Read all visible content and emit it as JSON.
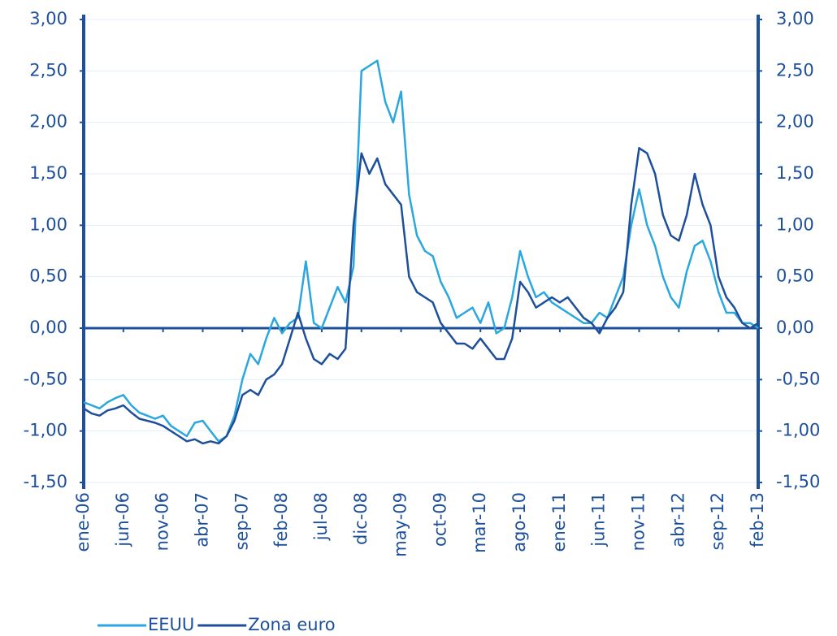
{
  "chart_data": {
    "type": "line",
    "categories": [
      "ene-06",
      null,
      null,
      null,
      null,
      "jun-06",
      null,
      null,
      null,
      null,
      "nov-06",
      null,
      null,
      null,
      null,
      "abr-07",
      null,
      null,
      null,
      null,
      "sep-07",
      null,
      null,
      null,
      null,
      "feb-08",
      null,
      null,
      null,
      null,
      "jul-08",
      null,
      null,
      null,
      null,
      "dic-08",
      null,
      null,
      null,
      null,
      "may-09",
      null,
      null,
      null,
      null,
      "oct-09",
      null,
      null,
      null,
      null,
      "mar-10",
      null,
      null,
      null,
      null,
      "ago-10",
      null,
      null,
      null,
      null,
      "ene-11",
      null,
      null,
      null,
      null,
      "jun-11",
      null,
      null,
      null,
      null,
      "nov-11",
      null,
      null,
      null,
      null,
      "abr-12",
      null,
      null,
      null,
      null,
      "sep-12",
      null,
      null,
      null,
      null,
      "feb-13"
    ],
    "series": [
      {
        "name": "EEUU",
        "color": "#2aa7df",
        "values": [
          -0.72,
          -0.75,
          -0.78,
          -0.72,
          -0.68,
          -0.65,
          -0.75,
          -0.82,
          -0.85,
          -0.88,
          -0.85,
          -0.95,
          -1.0,
          -1.05,
          -0.92,
          -0.9,
          -1.0,
          -1.1,
          -1.05,
          -0.85,
          -0.5,
          -0.25,
          -0.35,
          -0.1,
          0.1,
          -0.05,
          0.05,
          0.1,
          0.65,
          0.05,
          0.0,
          0.2,
          0.4,
          0.25,
          0.6,
          2.5,
          2.55,
          2.6,
          2.2,
          2.0,
          2.3,
          1.3,
          0.9,
          0.75,
          0.7,
          0.45,
          0.3,
          0.1,
          0.15,
          0.2,
          0.05,
          0.25,
          -0.05,
          0.0,
          0.3,
          0.75,
          0.5,
          0.3,
          0.35,
          0.25,
          0.2,
          0.15,
          0.1,
          0.05,
          0.05,
          0.15,
          0.1,
          0.3,
          0.5,
          1.0,
          1.35,
          1.0,
          0.8,
          0.5,
          0.3,
          0.2,
          0.55,
          0.8,
          0.85,
          0.65,
          0.35,
          0.15,
          0.15,
          0.05,
          0.05,
          0.0
        ]
      },
      {
        "name": "Zona euro",
        "color": "#1d4f9b",
        "axis": "y2",
        "values": [
          -0.78,
          -0.83,
          -0.85,
          -0.8,
          -0.78,
          -0.75,
          -0.82,
          -0.88,
          -0.9,
          -0.92,
          -0.95,
          -1.0,
          -1.05,
          -1.1,
          -1.08,
          -1.12,
          -1.1,
          -1.12,
          -1.05,
          -0.9,
          -0.65,
          -0.6,
          -0.65,
          -0.5,
          -0.45,
          -0.35,
          -0.1,
          0.15,
          -0.1,
          -0.3,
          -0.35,
          -0.25,
          -0.3,
          -0.2,
          1.0,
          1.7,
          1.5,
          1.65,
          1.4,
          1.3,
          1.2,
          0.5,
          0.35,
          0.3,
          0.25,
          0.05,
          -0.05,
          -0.15,
          -0.15,
          -0.2,
          -0.1,
          -0.2,
          -0.3,
          -0.3,
          -0.1,
          0.45,
          0.35,
          0.2,
          0.25,
          0.3,
          0.25,
          0.3,
          0.2,
          0.1,
          0.05,
          -0.05,
          0.1,
          0.2,
          0.35,
          1.2,
          1.75,
          1.7,
          1.5,
          1.1,
          0.9,
          0.85,
          1.1,
          1.5,
          1.2,
          1.0,
          0.5,
          0.3,
          0.2,
          0.05,
          0.0,
          0.05
        ]
      }
    ],
    "ylim": [
      -1.5,
      3
    ],
    "y2lim": [
      -1.5,
      3
    ],
    "yticks": [
      {
        "value": -1.5,
        "label": "-1,50"
      },
      {
        "value": -1,
        "label": "-1,00"
      },
      {
        "value": -0.5,
        "label": "-0,50"
      },
      {
        "value": 0,
        "label": "0,00"
      },
      {
        "value": 0.5,
        "label": "0,50"
      },
      {
        "value": 1,
        "label": "1,00"
      },
      {
        "value": 1.5,
        "label": "1,50"
      },
      {
        "value": 2,
        "label": "2,00"
      },
      {
        "value": 2.5,
        "label": "2,50"
      },
      {
        "value": 3,
        "label": "3,00"
      }
    ],
    "y2ticks": [
      {
        "value": -1.5,
        "label": "-1,50"
      },
      {
        "value": -1,
        "label": "-1,00"
      },
      {
        "value": -0.5,
        "label": "-0,50"
      },
      {
        "value": 0,
        "label": "0,00"
      },
      {
        "value": 0.5,
        "label": "0,50"
      },
      {
        "value": 1,
        "label": "1,00"
      },
      {
        "value": 1.5,
        "label": "1,50"
      },
      {
        "value": 2,
        "label": "2,00"
      },
      {
        "value": 2.5,
        "label": "2,50"
      },
      {
        "value": 3,
        "label": "3,00"
      }
    ],
    "grid": true,
    "legend": "bottom"
  }
}
